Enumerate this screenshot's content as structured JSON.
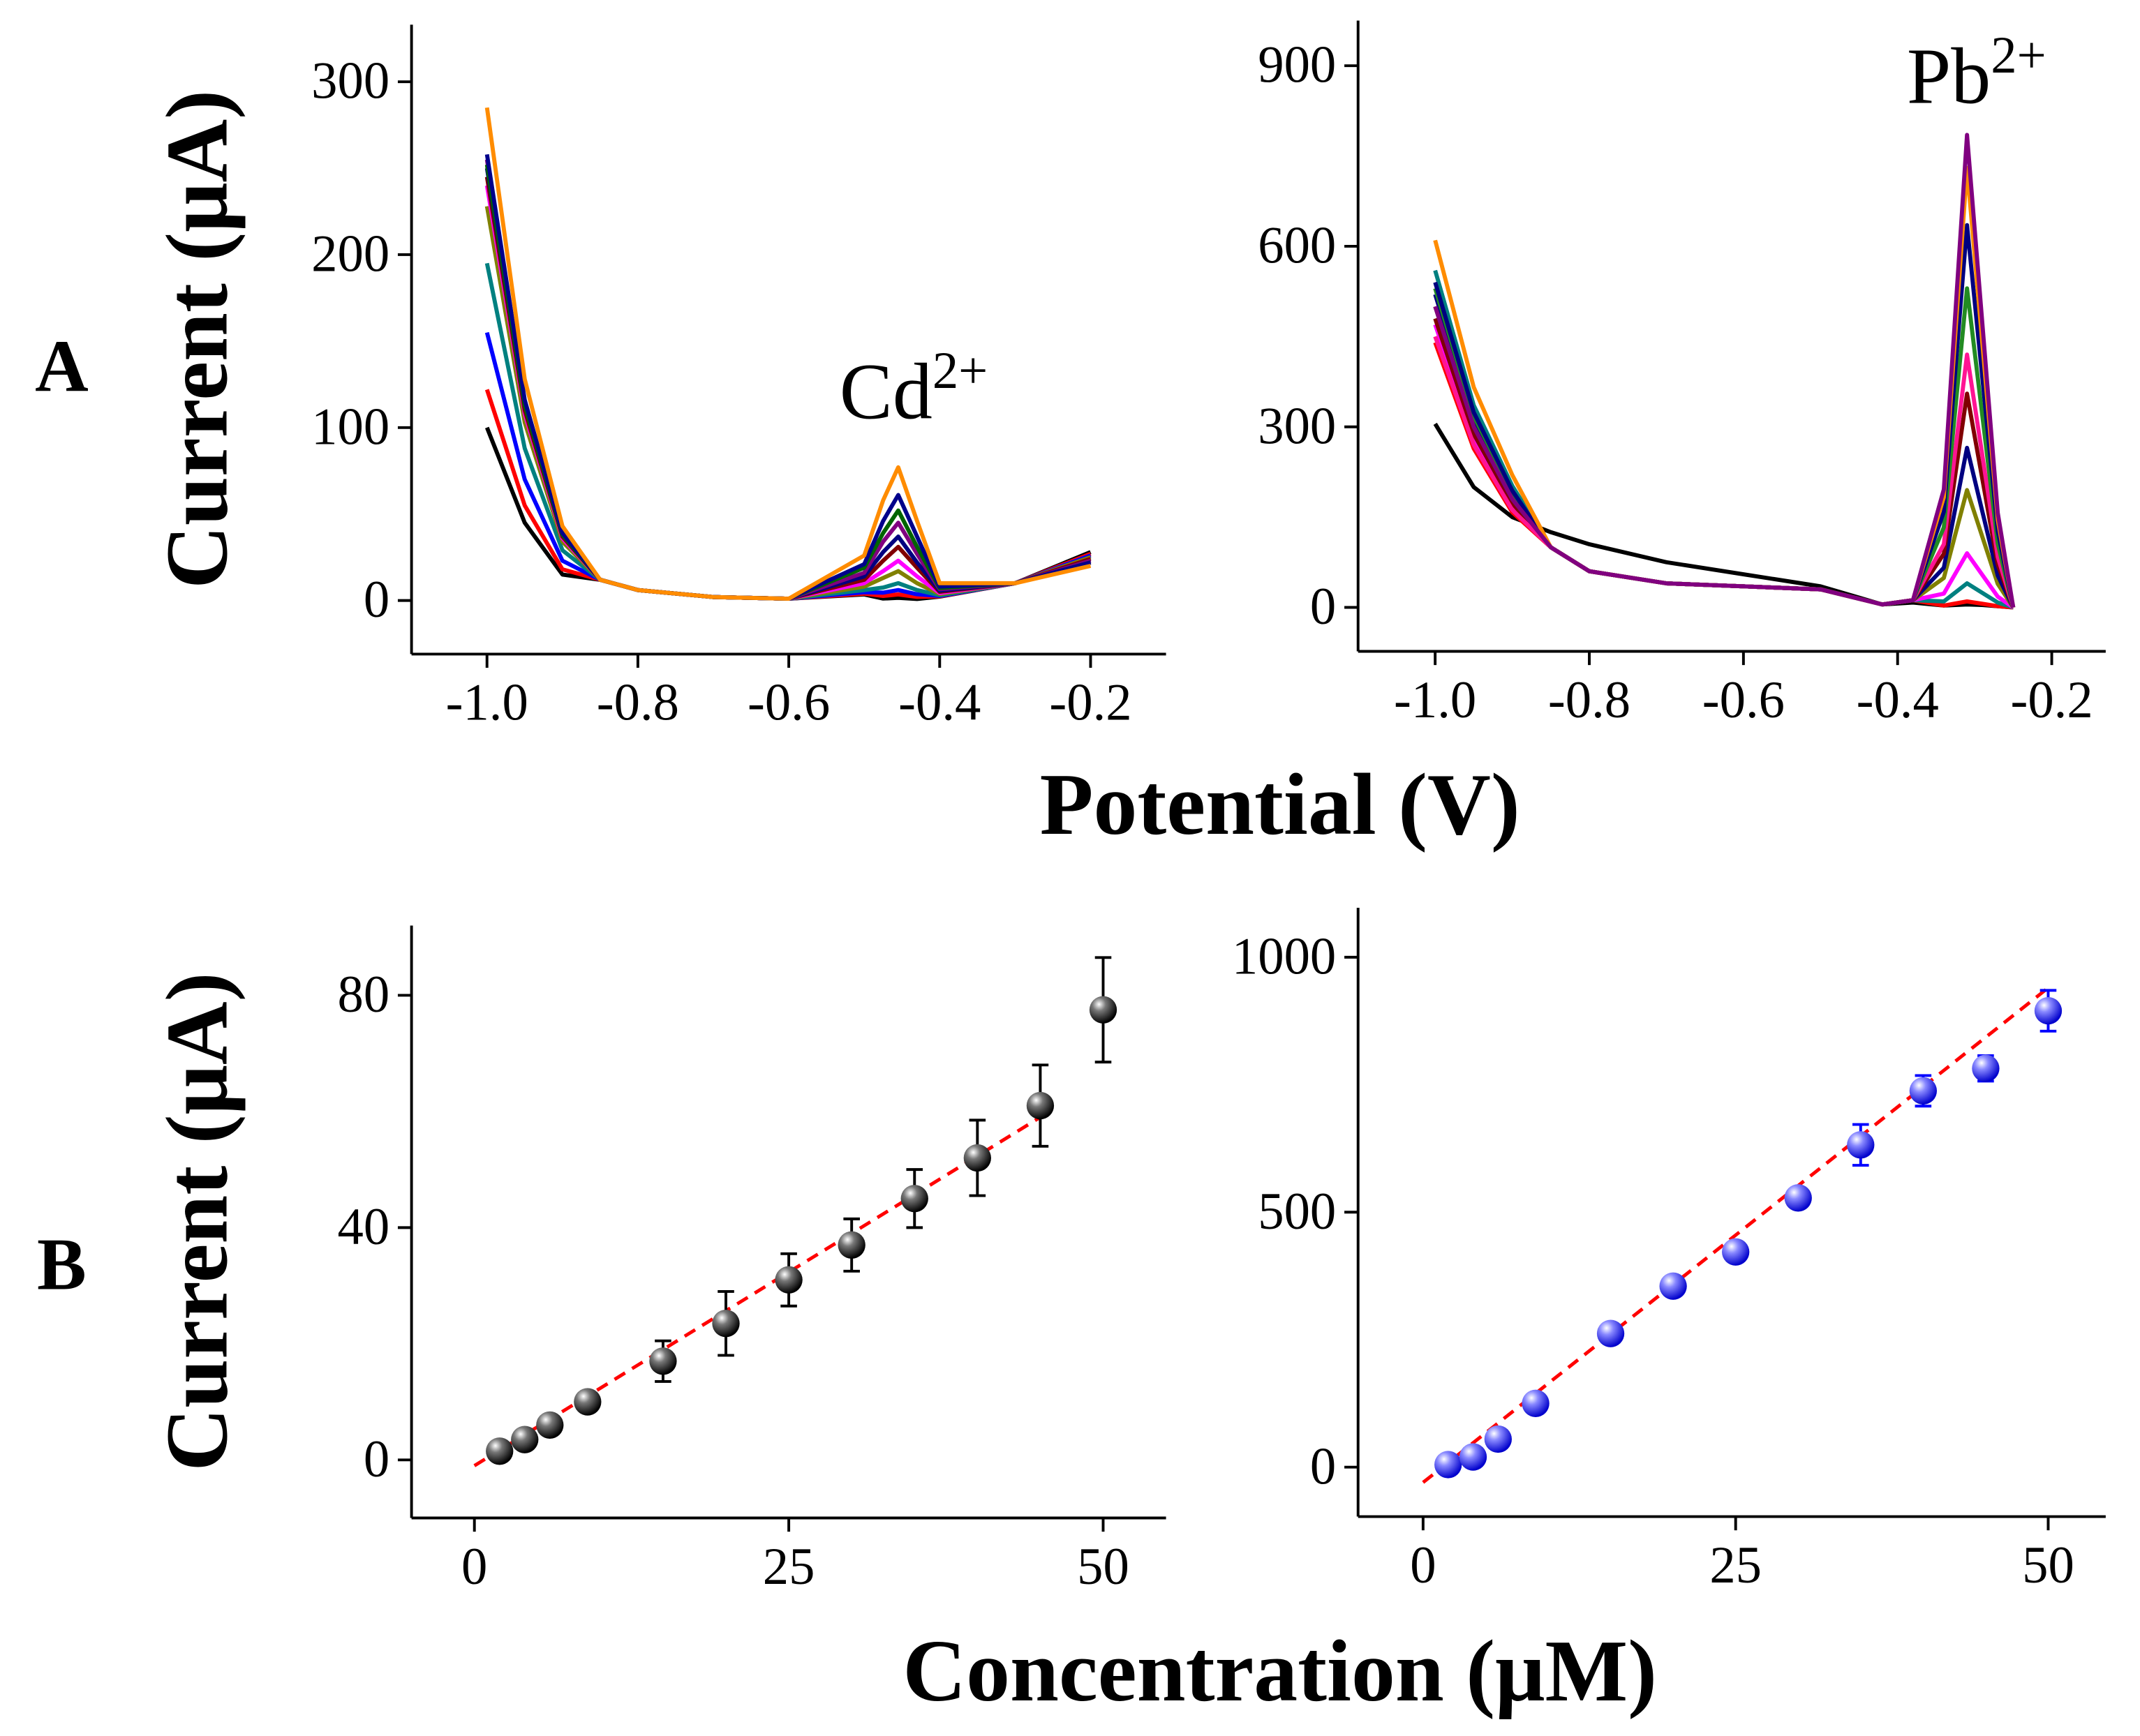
{
  "panel_labels": [
    "A",
    "B"
  ],
  "row_x_labels": [
    "Potential (V)",
    "Concentration (μM)"
  ],
  "chart_data": [
    {
      "type": "line",
      "ylabel": "Current (μA)",
      "annotation": {
        "base": "Cd",
        "superscript": "2+"
      },
      "xlim": [
        -1.1,
        -0.1
      ],
      "ylim": [
        -31,
        333
      ],
      "xticks": [
        {
          "value": -1,
          "label": "-1.0"
        },
        -0.8,
        -0.6,
        -0.4,
        -0.2
      ],
      "yticks": [
        0,
        100,
        200,
        300
      ],
      "x": [
        -1.0,
        -0.95,
        -0.9,
        -0.85,
        -0.8,
        -0.7,
        -0.6,
        -0.5,
        -0.475,
        -0.455,
        -0.43,
        -0.4,
        -0.3,
        -0.2
      ],
      "series": [
        {
          "color": "#000000",
          "values": [
            100,
            45,
            15,
            12,
            6,
            2,
            1,
            3.5,
            1.1,
            1.5,
            0.9,
            2.2,
            10,
            28
          ]
        },
        {
          "color": "#ff0000",
          "values": [
            122,
            55,
            18,
            12,
            6,
            2,
            1,
            4,
            2.6,
            3.5,
            2.1,
            2.4,
            10,
            27
          ]
        },
        {
          "color": "#0000ff",
          "values": [
            155,
            70,
            23,
            12,
            6,
            2,
            1,
            4.8,
            4.5,
            6,
            3.6,
            2.6,
            10,
            26
          ]
        },
        {
          "color": "#008080",
          "values": [
            195,
            88,
            29,
            12,
            6,
            2,
            1,
            6,
            7.5,
            10,
            6,
            3,
            10,
            25
          ]
        },
        {
          "color": "#808000",
          "values": [
            228,
            103,
            34,
            12,
            6,
            2,
            1,
            8,
            13,
            17,
            10,
            3.7,
            10,
            25
          ]
        },
        {
          "color": "#ff00ff",
          "values": [
            240,
            108,
            36,
            12,
            6,
            2,
            1,
            10,
            17,
            23,
            14,
            4.3,
            10,
            24
          ]
        },
        {
          "color": "#800000",
          "values": [
            245,
            110,
            37,
            12,
            6,
            2,
            1,
            12,
            23,
            31,
            19,
            5,
            10,
            24
          ]
        },
        {
          "color": "#000080",
          "values": [
            250,
            113,
            38,
            12,
            6,
            2,
            1,
            14,
            28,
            37,
            22,
            5.7,
            10,
            23
          ]
        },
        {
          "color": "#800080",
          "values": [
            255,
            115,
            38,
            12,
            6,
            2,
            1,
            16,
            34,
            45,
            27,
            6.5,
            10,
            23
          ]
        },
        {
          "color": "#006400",
          "values": [
            252,
            113,
            38,
            12,
            6,
            2,
            1,
            19,
            39,
            52,
            31,
            7.2,
            10,
            22
          ]
        },
        {
          "color": "#00008b",
          "values": [
            258,
            116,
            39,
            12,
            6,
            2,
            1,
            21,
            46,
            61,
            37,
            8,
            10,
            22
          ]
        },
        {
          "color": "#ff8c00",
          "values": [
            285,
            128,
            43,
            12,
            6,
            2,
            1,
            26,
            58,
            77,
            46,
            10,
            10,
            20
          ]
        }
      ]
    },
    {
      "type": "line",
      "annotation": {
        "base": "Pb",
        "superscript": "2+"
      },
      "xlim": [
        -1.1,
        -0.13
      ],
      "ylim": [
        -73,
        975
      ],
      "xticks": [
        {
          "value": -1,
          "label": "-1.0"
        },
        -0.8,
        -0.6,
        -0.4,
        -0.2
      ],
      "yticks": [
        0,
        300,
        600,
        900
      ],
      "x": [
        -1.0,
        -0.95,
        -0.9,
        -0.85,
        -0.8,
        -0.7,
        -0.6,
        -0.5,
        -0.42,
        -0.38,
        -0.34,
        -0.31,
        -0.29,
        -0.27,
        -0.25
      ],
      "series": [
        {
          "color": "#000000",
          "values": [
            305,
            200,
            150,
            125,
            105,
            75,
            55,
            35,
            5,
            8,
            3,
            5,
            4,
            2,
            0
          ]
        },
        {
          "color": "#ff0000",
          "values": [
            440,
            264,
            158,
            100,
            60,
            40,
            35,
            30,
            5,
            12,
            3,
            10,
            6,
            2,
            0
          ]
        },
        {
          "color": "#008080",
          "values": [
            560,
            336,
            202,
            100,
            60,
            40,
            35,
            30,
            5,
            12,
            10,
            40,
            24,
            8,
            0
          ]
        },
        {
          "color": "#ff00ff",
          "values": [
            470,
            282,
            169,
            100,
            60,
            40,
            35,
            30,
            5,
            12,
            23,
            90,
            54,
            18,
            0
          ]
        },
        {
          "color": "#808000",
          "values": [
            500,
            300,
            180,
            100,
            60,
            40,
            35,
            30,
            5,
            12,
            49,
            195,
            117,
            39,
            0
          ]
        },
        {
          "color": "#000080",
          "values": [
            520,
            312,
            187,
            100,
            60,
            40,
            35,
            30,
            5,
            12,
            66,
            265,
            159,
            53,
            0
          ]
        },
        {
          "color": "#800000",
          "values": [
            480,
            288,
            173,
            100,
            60,
            40,
            35,
            30,
            5,
            12,
            89,
            355,
            213,
            71,
            0
          ]
        },
        {
          "color": "#ff1493",
          "values": [
            450,
            270,
            162,
            100,
            60,
            40,
            35,
            30,
            5,
            12,
            105,
            420,
            252,
            84,
            0
          ]
        },
        {
          "color": "#228b22",
          "values": [
            530,
            318,
            191,
            100,
            60,
            40,
            35,
            30,
            5,
            12,
            133,
            530,
            318,
            106,
            0
          ]
        },
        {
          "color": "#000080",
          "values": [
            540,
            324,
            194,
            100,
            60,
            40,
            35,
            30,
            5,
            12,
            159,
            635,
            381,
            127,
            0
          ]
        },
        {
          "color": "#ff8c00",
          "values": [
            610,
            366,
            220,
            100,
            60,
            40,
            35,
            30,
            5,
            12,
            183,
            730,
            438,
            146,
            0
          ]
        },
        {
          "color": "#800080",
          "values": [
            500,
            300,
            180,
            100,
            60,
            40,
            35,
            30,
            5,
            12,
            196,
            785,
            471,
            157,
            0
          ]
        }
      ]
    },
    {
      "type": "scatter",
      "ylabel": "Current (μA)",
      "color": "#000000",
      "fit_color": "#ff0000",
      "xlim": [
        -5,
        55
      ],
      "ylim": [
        -10,
        92
      ],
      "xticks": [
        0,
        25,
        50
      ],
      "yticks": [
        0,
        40,
        80
      ],
      "x": [
        2,
        4,
        6,
        9,
        15,
        20,
        25,
        30,
        35,
        40,
        45,
        50
      ],
      "values": [
        1.5,
        3.5,
        6,
        10,
        17,
        23.5,
        31,
        37,
        45,
        52,
        61,
        77.5
      ],
      "errors": [
        0.5,
        1,
        1,
        1,
        3.5,
        5.5,
        4.5,
        4.5,
        5,
        6.5,
        7,
        9
      ],
      "fit": {
        "x": [
          0,
          45
        ],
        "values": [
          -1,
          59
        ]
      }
    },
    {
      "type": "scatter",
      "color": "#0000ff",
      "fit_color": "#ff0000",
      "xlim": [
        -5.2,
        54.6
      ],
      "ylim": [
        -97,
        1097
      ],
      "xticks": [
        0,
        25,
        50
      ],
      "yticks": [
        0,
        500,
        1000
      ],
      "x": [
        2,
        4,
        6,
        9,
        15,
        20,
        25,
        30,
        35,
        40,
        45,
        50
      ],
      "values": [
        5,
        20,
        55,
        125,
        262,
        355,
        422,
        528,
        632,
        738,
        782,
        895
      ],
      "errors": [
        10,
        10,
        10,
        10,
        10,
        10,
        10,
        15,
        40,
        30,
        25,
        40
      ],
      "fit": {
        "x": [
          0,
          50
        ],
        "values": [
          -30,
          940
        ]
      }
    }
  ]
}
